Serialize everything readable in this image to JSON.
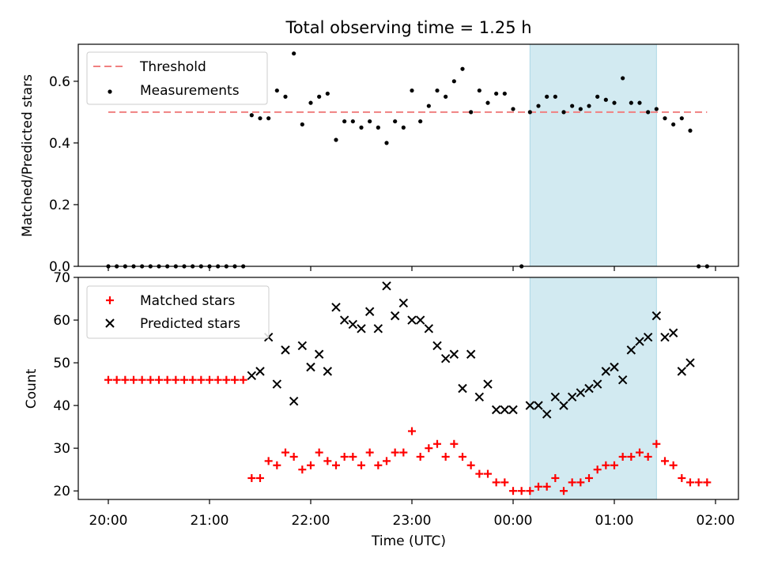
{
  "figure": {
    "title": "Total observing time = 1.25 h"
  },
  "colors": {
    "threshold": "#f08080",
    "window": "#add8e6",
    "matched": "#ff0000",
    "predicted": "#000000",
    "measurement": "#000000"
  },
  "chart_data": [
    {
      "type": "scatter",
      "ylabel": "Matched/Predicted stars",
      "ylim": [
        0,
        0.72
      ],
      "yticks": [
        0.0,
        0.2,
        0.4,
        0.6
      ],
      "ytick_labels": [
        "0.0",
        "0.2",
        "0.4",
        "0.6"
      ],
      "threshold": 0.5,
      "threshold_x": [
        "20:00",
        "01:55"
      ],
      "highlight": [
        "00:10",
        "01:25"
      ],
      "legend": {
        "position": "top-left",
        "entries": [
          "Threshold",
          "Measurements"
        ]
      },
      "series": [
        {
          "name": "Measurements",
          "x": [
            "20:00",
            "20:05",
            "20:10",
            "20:15",
            "20:20",
            "20:25",
            "20:30",
            "20:35",
            "20:40",
            "20:45",
            "20:50",
            "20:55",
            "21:00",
            "21:05",
            "21:10",
            "21:15",
            "21:20",
            "21:25",
            "21:30",
            "21:35",
            "21:40",
            "21:45",
            "21:50",
            "21:55",
            "22:00",
            "22:05",
            "22:10",
            "22:15",
            "22:20",
            "22:25",
            "22:30",
            "22:35",
            "22:40",
            "22:45",
            "22:50",
            "22:55",
            "23:00",
            "23:05",
            "23:10",
            "23:15",
            "23:20",
            "23:25",
            "23:30",
            "23:35",
            "23:40",
            "23:45",
            "23:50",
            "23:55",
            "00:00",
            "00:05",
            "00:10",
            "00:15",
            "00:20",
            "00:25",
            "00:30",
            "00:35",
            "00:40",
            "00:45",
            "00:50",
            "00:55",
            "01:00",
            "01:05",
            "01:10",
            "01:15",
            "01:20",
            "01:25",
            "01:30",
            "01:35",
            "01:40",
            "01:45",
            "01:50",
            "01:55"
          ],
          "values": [
            0,
            0,
            0,
            0,
            0,
            0,
            0,
            0,
            0,
            0,
            0,
            0,
            0,
            0,
            0,
            0,
            0,
            0.49,
            0.48,
            0.48,
            0.57,
            0.55,
            0.69,
            0.46,
            0.53,
            0.55,
            0.56,
            0.41,
            0.47,
            0.47,
            0.45,
            0.47,
            0.45,
            0.4,
            0.47,
            0.45,
            0.57,
            0.47,
            0.52,
            0.57,
            0.55,
            0.6,
            0.64,
            0.5,
            0.57,
            0.53,
            0.56,
            0.56,
            0.51,
            0,
            0.5,
            0.52,
            0.55,
            0.55,
            0.5,
            0.52,
            0.51,
            0.52,
            0.55,
            0.54,
            0.53,
            0.61,
            0.53,
            0.53,
            0.5,
            0.51,
            0.48,
            0.46,
            0.48,
            0.44,
            0,
            0
          ]
        }
      ]
    },
    {
      "type": "scatter",
      "xlabel": "Time (UTC)",
      "ylabel": "Count",
      "ylim": [
        18,
        70
      ],
      "yticks": [
        20,
        30,
        40,
        50,
        60,
        70
      ],
      "ytick_labels": [
        "20",
        "30",
        "40",
        "50",
        "60",
        "70"
      ],
      "xticks": [
        "20:00",
        "21:00",
        "22:00",
        "23:00",
        "00:00",
        "01:00",
        "02:00"
      ],
      "highlight": [
        "00:10",
        "01:25"
      ],
      "legend": {
        "position": "top-left",
        "entries": [
          "Matched stars",
          "Predicted stars"
        ]
      },
      "series": [
        {
          "name": "Matched stars",
          "marker": "plus",
          "x": [
            "20:00",
            "20:05",
            "20:10",
            "20:15",
            "20:20",
            "20:25",
            "20:30",
            "20:35",
            "20:40",
            "20:45",
            "20:50",
            "20:55",
            "21:00",
            "21:05",
            "21:10",
            "21:15",
            "21:20",
            "21:25",
            "21:30",
            "21:35",
            "21:40",
            "21:45",
            "21:50",
            "21:55",
            "22:00",
            "22:05",
            "22:10",
            "22:15",
            "22:20",
            "22:25",
            "22:30",
            "22:35",
            "22:40",
            "22:45",
            "22:50",
            "22:55",
            "23:00",
            "23:05",
            "23:10",
            "23:15",
            "23:20",
            "23:25",
            "23:30",
            "23:35",
            "23:40",
            "23:45",
            "23:50",
            "23:55",
            "00:00",
            "00:05",
            "00:10",
            "00:15",
            "00:20",
            "00:25",
            "00:30",
            "00:35",
            "00:40",
            "00:45",
            "00:50",
            "00:55",
            "01:00",
            "01:05",
            "01:10",
            "01:15",
            "01:20",
            "01:25",
            "01:30",
            "01:35",
            "01:40",
            "01:45",
            "01:50",
            "01:55"
          ],
          "values": [
            46,
            46,
            46,
            46,
            46,
            46,
            46,
            46,
            46,
            46,
            46,
            46,
            46,
            46,
            46,
            46,
            46,
            23,
            23,
            27,
            26,
            29,
            28,
            25,
            26,
            29,
            27,
            26,
            28,
            28,
            26,
            29,
            26,
            27,
            29,
            29,
            34,
            28,
            30,
            31,
            28,
            31,
            28,
            26,
            24,
            24,
            22,
            22,
            20,
            20,
            20,
            21,
            21,
            23,
            20,
            22,
            22,
            23,
            25,
            26,
            26,
            28,
            28,
            29,
            28,
            31,
            27,
            26,
            23,
            22,
            22,
            22
          ]
        },
        {
          "name": "Predicted stars",
          "marker": "x",
          "x": [
            "21:25",
            "21:30",
            "21:35",
            "21:40",
            "21:45",
            "21:50",
            "21:55",
            "22:00",
            "22:05",
            "22:10",
            "22:15",
            "22:20",
            "22:25",
            "22:30",
            "22:35",
            "22:40",
            "22:45",
            "22:50",
            "22:55",
            "23:00",
            "23:05",
            "23:10",
            "23:15",
            "23:20",
            "23:25",
            "23:30",
            "23:35",
            "23:40",
            "23:45",
            "23:50",
            "23:55",
            "00:00",
            "00:10",
            "00:15",
            "00:20",
            "00:25",
            "00:30",
            "00:35",
            "00:40",
            "00:45",
            "00:50",
            "00:55",
            "01:00",
            "01:05",
            "01:10",
            "01:15",
            "01:20",
            "01:25",
            "01:30",
            "01:35",
            "01:40",
            "01:45"
          ],
          "values": [
            47,
            48,
            56,
            45,
            53,
            41,
            54,
            49,
            52,
            48,
            63,
            60,
            59,
            58,
            62,
            58,
            68,
            61,
            64,
            60,
            60,
            58,
            54,
            51,
            52,
            44,
            52,
            42,
            45,
            39,
            39,
            39,
            40,
            40,
            38,
            42,
            40,
            42,
            43,
            44,
            45,
            48,
            49,
            46,
            53,
            55,
            56,
            61,
            56,
            57,
            48,
            50
          ]
        }
      ]
    }
  ]
}
